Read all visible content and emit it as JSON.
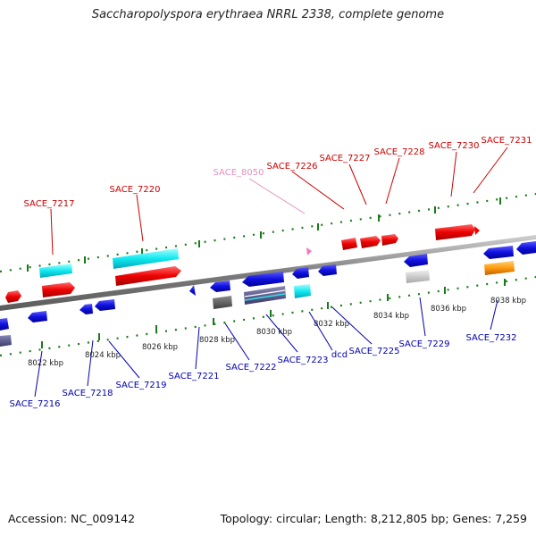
{
  "title": "Saccharopolyspora erythraea NRRL 2338, complete genome",
  "footer": {
    "accession": "Accession: NC_009142",
    "topology": "Topology: circular; Length: 8,212,805 bp; Genes: 7,259"
  },
  "colors": {
    "forward_label": "#cc0000",
    "reverse_label": "#0000b0",
    "pseudo_label": "#e38fbf",
    "tick": "#1a7a1a",
    "backbone": "#8a8a8a"
  },
  "ticks": [
    "8022 kbp",
    "8024 kbp",
    "8026 kbp",
    "8028 kbp",
    "8030 kbp",
    "8032 kbp",
    "8034 kbp",
    "8036 kbp",
    "8038 kbp"
  ],
  "forward_genes": [
    "SACE_7217",
    "SACE_7220",
    "SACE_8050",
    "SACE_7226",
    "SACE_7227",
    "SACE_7228",
    "SACE_7230",
    "SACE_7231"
  ],
  "reverse_genes": [
    "SACE_7216",
    "SACE_7218",
    "SACE_7219",
    "SACE_7221",
    "SACE_7222",
    "SACE_7223",
    "dcd",
    "SACE_7225",
    "SACE_7229",
    "SACE_7232"
  ]
}
